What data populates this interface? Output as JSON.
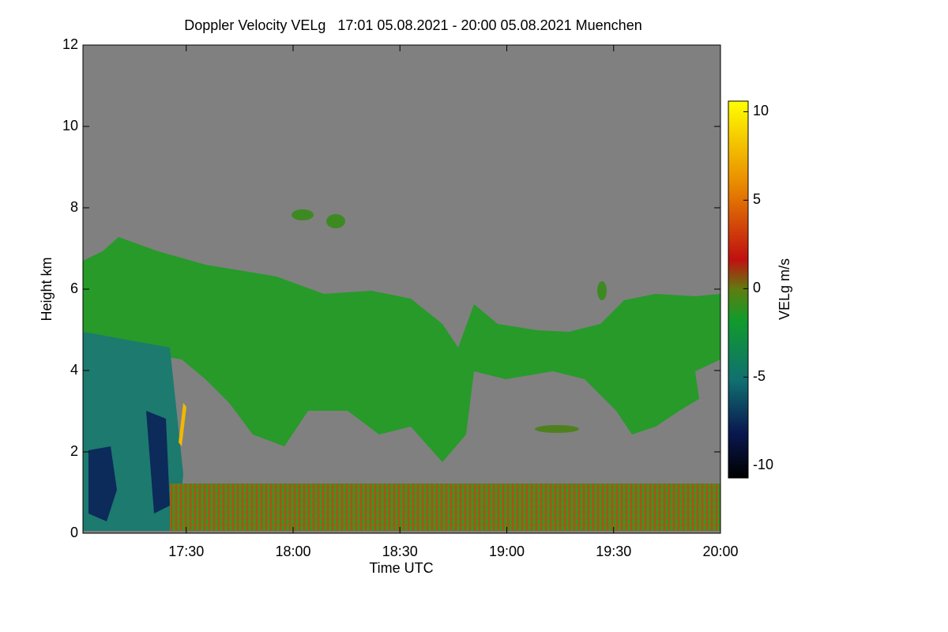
{
  "chart_data": {
    "type": "heatmap",
    "title": "Doppler Velocity VELg   17:01 05.08.2021 - 20:00 05.08.2021 Muenchen",
    "x_label": "Time UTC",
    "y_label": "Height km",
    "colorbar_label": "VELg m/s",
    "xlim": [
      1021,
      1200
    ],
    "xticks": [
      {
        "value": 1050,
        "label": "17:30"
      },
      {
        "value": 1080,
        "label": "18:00"
      },
      {
        "value": 1110,
        "label": "18:30"
      },
      {
        "value": 1140,
        "label": "19:00"
      },
      {
        "value": 1170,
        "label": "19:30"
      },
      {
        "value": 1200,
        "label": "20:00"
      }
    ],
    "ylim": [
      0,
      12
    ],
    "yticks": [
      0,
      2,
      4,
      6,
      8,
      10,
      12
    ],
    "clim": [
      -10.7,
      10.6
    ],
    "cticks": [
      -10,
      -5,
      0,
      5,
      10
    ]
  }
}
